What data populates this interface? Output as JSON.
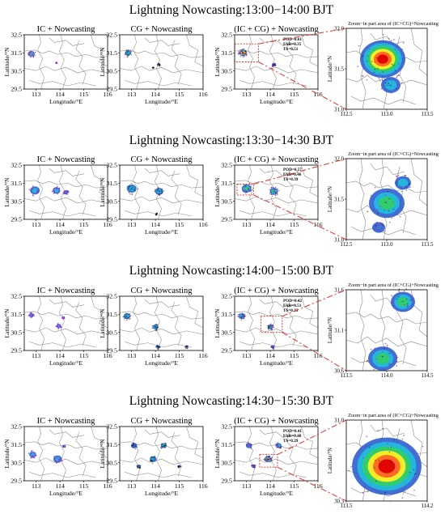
{
  "chart_data": {
    "type": "heatmap",
    "panel_titles": [
      "IC + Nowcasting",
      "CG + Nowcasting",
      "(IC + CG) + Nowcasting"
    ],
    "zoom_title": "Zoom−in part area of (IC+CG)+Nowcasting",
    "xlabel": "Longitude/°E",
    "ylabel": "Latitude/°N",
    "main_xlim": [
      112.5,
      116
    ],
    "main_ylim": [
      29.5,
      32.5
    ],
    "main_xticks": [
      113,
      114,
      115,
      116
    ],
    "main_yticks": [
      29.5,
      30.5,
      31.5,
      32.5
    ],
    "colors": {
      "low": "#2255cc",
      "mid1": "#22bbdd",
      "mid2": "#33cc66",
      "mid3": "#ffee22",
      "high": "#ff6622",
      "peak": "#dd0000",
      "ic_marker": "#9933cc",
      "cg_marker": "#000000",
      "box": "#e03030"
    },
    "rows": [
      {
        "title": "Lightning Nowcasting:13:00−14:00 BJT",
        "stats": {
          "pod": "POD=0.61",
          "far": "FAR=0.35",
          "ts": "TS=0.51"
        },
        "zoom_xlim": [
          112.5,
          113.5
        ],
        "zoom_ylim": [
          31.0,
          32.0
        ],
        "zoom_xticks": [
          "112.5",
          "113.0",
          "113.5"
        ],
        "zoom_yticks": [
          "31.0",
          "31.5",
          "32.0"
        ],
        "zoom_box": {
          "x": [
            112.5,
            113.5
          ],
          "y": [
            31.0,
            32.0
          ]
        },
        "cells_ic": [
          {
            "x": 112.8,
            "y": 31.45,
            "r": 0.14,
            "level": 3
          },
          {
            "x": 113.85,
            "y": 30.95,
            "r": 0.03,
            "level": 1
          }
        ],
        "cells_cg": [
          {
            "x": 112.85,
            "y": 31.5,
            "r": 0.13,
            "level": 2
          },
          {
            "x": 114.15,
            "y": 30.85,
            "r": 0.06,
            "level": 1
          },
          {
            "x": 113.9,
            "y": 30.7,
            "r": 0.03,
            "level": 1
          }
        ],
        "cells_all": [
          {
            "x": 112.85,
            "y": 31.5,
            "r": 0.15,
            "level": 6
          },
          {
            "x": 114.15,
            "y": 30.85,
            "r": 0.08,
            "level": 2
          }
        ],
        "zoom_cells": [
          {
            "x": 112.95,
            "y": 31.62,
            "r": 0.28,
            "level": 6
          },
          {
            "x": 113.05,
            "y": 31.3,
            "r": 0.12,
            "level": 2
          }
        ]
      },
      {
        "title": "Lightning Nowcasting:13:30−14:30 BJT",
        "stats": {
          "pod": "POD=0.57",
          "far": "FAR=0.46",
          "ts": "TS=0.39"
        },
        "zoom_xlim": [
          112.5,
          113.5
        ],
        "zoom_ylim": [
          31.0,
          32.0
        ],
        "zoom_xticks": [
          "112.5",
          "113.0",
          "113.5"
        ],
        "zoom_yticks": [
          "31.0",
          "31.5",
          "32.0"
        ],
        "zoom_box": {
          "x": [
            112.6,
            113.3
          ],
          "y": [
            30.85,
            31.45
          ]
        },
        "cells_ic": [
          {
            "x": 112.95,
            "y": 31.1,
            "r": 0.2,
            "level": 2
          },
          {
            "x": 113.85,
            "y": 31.1,
            "r": 0.16,
            "level": 2
          },
          {
            "x": 114.25,
            "y": 31.0,
            "r": 0.1,
            "level": 1
          }
        ],
        "cells_cg": [
          {
            "x": 113.0,
            "y": 31.2,
            "r": 0.2,
            "level": 2
          },
          {
            "x": 114.15,
            "y": 31.05,
            "r": 0.17,
            "level": 2
          },
          {
            "x": 114.05,
            "y": 29.8,
            "r": 0.04,
            "level": 1
          }
        ],
        "cells_all": [
          {
            "x": 113.0,
            "y": 31.2,
            "r": 0.2,
            "level": 3
          },
          {
            "x": 114.15,
            "y": 31.05,
            "r": 0.17,
            "level": 3
          }
        ],
        "zoom_cells": [
          {
            "x": 113.0,
            "y": 31.45,
            "r": 0.22,
            "level": 3
          },
          {
            "x": 113.2,
            "y": 31.7,
            "r": 0.1,
            "level": 2
          },
          {
            "x": 112.9,
            "y": 31.15,
            "r": 0.08,
            "level": 1
          }
        ]
      },
      {
        "title": "Lightning Nowcasting:14:00−15:00 BJT",
        "stats": {
          "pod": "POD=0.42",
          "far": "FAR=0.51",
          "ts": "TS=0.33"
        },
        "zoom_xlim": [
          113.5,
          114.5
        ],
        "zoom_ylim": [
          30.6,
          31.6
        ],
        "zoom_xticks": [
          "113.5",
          "114.0",
          "114.5"
        ],
        "zoom_yticks": [
          "30.6",
          "31.1",
          "31.6"
        ],
        "zoom_box": {
          "x": [
            113.6,
            114.5
          ],
          "y": [
            30.5,
            31.4
          ]
        },
        "cells_ic": [
          {
            "x": 112.8,
            "y": 31.45,
            "r": 0.1,
            "level": 2
          },
          {
            "x": 113.95,
            "y": 30.85,
            "r": 0.1,
            "level": 2
          },
          {
            "x": 114.15,
            "y": 31.3,
            "r": 0.05,
            "level": 1
          }
        ],
        "cells_cg": [
          {
            "x": 112.8,
            "y": 31.4,
            "r": 0.14,
            "level": 2
          },
          {
            "x": 114.0,
            "y": 30.8,
            "r": 0.12,
            "level": 2
          },
          {
            "x": 114.1,
            "y": 29.7,
            "r": 0.08,
            "level": 1
          },
          {
            "x": 115.3,
            "y": 29.7,
            "r": 0.06,
            "level": 1
          }
        ],
        "cells_all": [
          {
            "x": 112.8,
            "y": 31.4,
            "r": 0.14,
            "level": 2
          },
          {
            "x": 114.0,
            "y": 30.8,
            "r": 0.12,
            "level": 3
          },
          {
            "x": 114.1,
            "y": 29.7,
            "r": 0.08,
            "level": 1
          }
        ],
        "zoom_cells": [
          {
            "x": 114.2,
            "y": 31.45,
            "r": 0.15,
            "level": 3
          },
          {
            "x": 113.95,
            "y": 30.75,
            "r": 0.18,
            "level": 3
          }
        ]
      },
      {
        "title": "Lightning Nowcasting:14:30−15:30 BJT",
        "stats": {
          "pod": "POD=0.41",
          "far": "FAR=0.48",
          "ts": "TS=0.29"
        },
        "zoom_xlim": [
          113.5,
          114.2
        ],
        "zoom_ylim": [
          30.3,
          31.0
        ],
        "zoom_xticks": [
          "113.5",
          "114.2"
        ],
        "zoom_yticks": [
          "30.3",
          "31.0"
        ],
        "zoom_box": {
          "x": [
            113.55,
            114.3
          ],
          "y": [
            30.25,
            30.95
          ]
        },
        "cells_ic": [
          {
            "x": 112.85,
            "y": 30.95,
            "r": 0.14,
            "level": 2
          },
          {
            "x": 113.9,
            "y": 30.7,
            "r": 0.18,
            "level": 2
          },
          {
            "x": 114.15,
            "y": 31.4,
            "r": 0.06,
            "level": 1
          }
        ],
        "cells_cg": [
          {
            "x": 113.1,
            "y": 31.45,
            "r": 0.13,
            "level": 1
          },
          {
            "x": 114.35,
            "y": 31.45,
            "r": 0.12,
            "level": 2
          },
          {
            "x": 113.9,
            "y": 30.7,
            "r": 0.14,
            "level": 2
          },
          {
            "x": 113.3,
            "y": 30.3,
            "r": 0.08,
            "level": 1
          },
          {
            "x": 115.0,
            "y": 30.3,
            "r": 0.06,
            "level": 1
          }
        ],
        "cells_all": [
          {
            "x": 113.1,
            "y": 31.45,
            "r": 0.13,
            "level": 1
          },
          {
            "x": 114.35,
            "y": 31.45,
            "r": 0.12,
            "level": 2
          },
          {
            "x": 113.9,
            "y": 30.7,
            "r": 0.15,
            "level": 5
          },
          {
            "x": 113.3,
            "y": 30.3,
            "r": 0.08,
            "level": 1
          }
        ],
        "zoom_cells": [
          {
            "x": 113.85,
            "y": 30.6,
            "r": 0.3,
            "level": 6
          }
        ]
      }
    ]
  }
}
